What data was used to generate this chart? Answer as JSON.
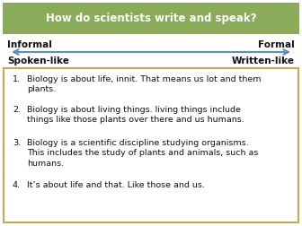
{
  "title": "How do scientists write and speak?",
  "title_bg_color": "#8aab5a",
  "title_text_color": "#ffffff",
  "bg_color": "#ffffff",
  "informal_label": "Informal",
  "formal_label": "Formal",
  "spoken_label": "Spoken-like",
  "written_label": "Written-like",
  "arrow_color": "#5b8ec9",
  "box_border_color": "#c8a84b",
  "label_fontsize": 7.5,
  "item_fontsize": 6.8,
  "title_fontsize": 8.5,
  "items": [
    "Biology is about life, innit. That means us lot and them\nplants.",
    "Biology is about living things. living things include\nthings like those plants over there and us humans.",
    "Biology is a scientific discipline studying organisms.\nThis includes the study of plants and animals, such as\nhumans.",
    "It’s about life and that. Like those and us."
  ],
  "numbers": [
    "1.",
    "2.",
    "3.",
    "4."
  ]
}
